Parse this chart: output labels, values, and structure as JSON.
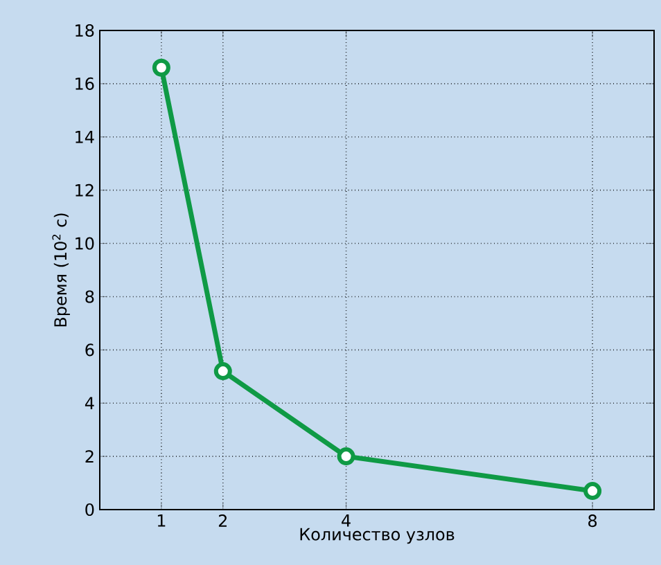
{
  "chart_data": {
    "type": "line",
    "xlabel": "Количество узлов",
    "ylabel": "Время (10$^{2}$ с)",
    "x": [
      1,
      2,
      4,
      8
    ],
    "series": [
      {
        "color": "#0f9a45",
        "values": [
          16.6,
          5.2,
          2.0,
          0.7
        ]
      }
    ],
    "xlim": [
      0,
      9
    ],
    "xticks": [
      1,
      2,
      4,
      8
    ],
    "ylim": [
      0,
      18
    ],
    "yticks": [
      0,
      2,
      4,
      6,
      8,
      10,
      12,
      14,
      16,
      18
    ],
    "grid": true,
    "marker": "circle",
    "line_style": "solid"
  }
}
